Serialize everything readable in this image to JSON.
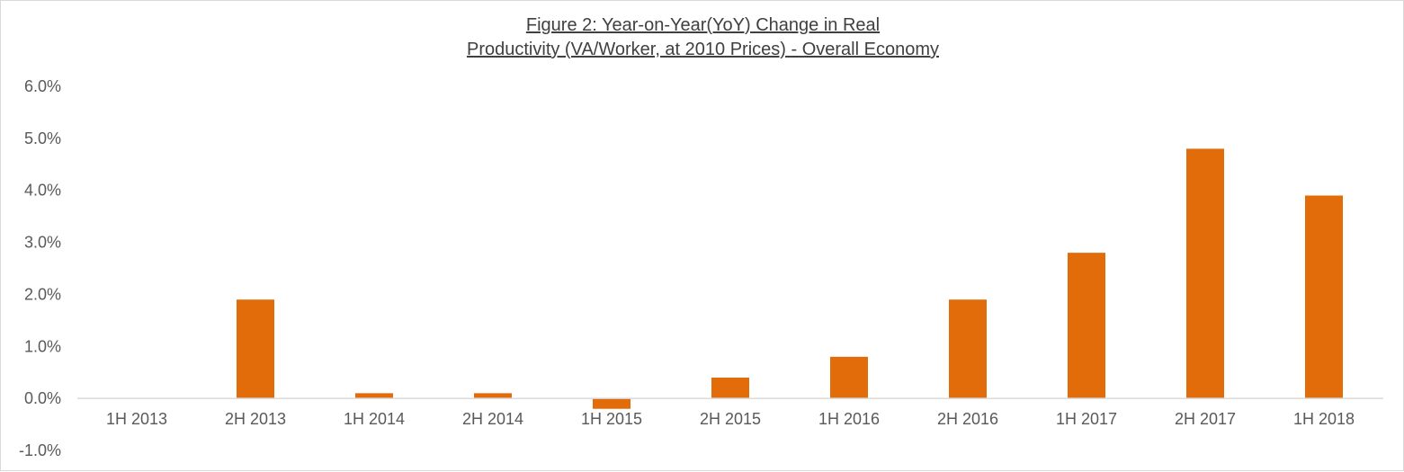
{
  "chart_data": {
    "type": "bar",
    "title_lines": [
      "Figure 2: Year-on-Year(YoY) Change  in Real",
      "Productivity (VA/Worker, at 2010 Prices) - Overall Economy"
    ],
    "categories": [
      "1H 2013",
      "2H 2013",
      "1H 2014",
      "2H 2014",
      "1H 2015",
      "2H 2015",
      "1H 2016",
      "2H 2016",
      "1H 2017",
      "2H 2017",
      "1H 2018"
    ],
    "values": [
      0.0,
      1.9,
      0.1,
      0.1,
      -0.2,
      0.4,
      0.8,
      1.9,
      2.8,
      4.8,
      3.9
    ],
    "ylim": [
      -1.0,
      6.0
    ],
    "yticks": [
      6.0,
      5.0,
      4.0,
      3.0,
      2.0,
      1.0,
      0.0,
      -1.0
    ],
    "ytick_labels": [
      "6.0%",
      "5.0%",
      "4.0%",
      "3.0%",
      "2.0%",
      "1.0%",
      "0.0%",
      "-1.0%"
    ],
    "bar_color": "#e36c0a",
    "grid": false,
    "legend": "none"
  }
}
